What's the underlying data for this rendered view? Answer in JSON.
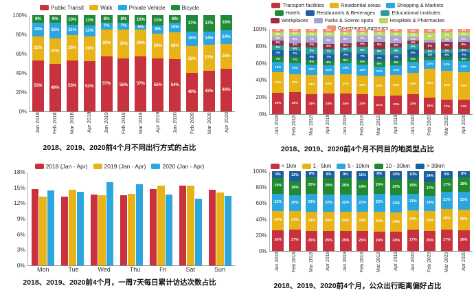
{
  "page": {
    "background": "#ffffff"
  },
  "chart_data": [
    {
      "type": "bar",
      "variant": "stacked-100",
      "title": "2018、2019、2020前4个月不同出行方式的占比",
      "xlabel": "",
      "ylabel": "",
      "ylim": [
        0,
        100
      ],
      "yticks": [
        0,
        20,
        40,
        60,
        80,
        100
      ],
      "ytick_suffix": "%",
      "grid": false,
      "legend_position": "top",
      "categories": [
        "Jan 2018",
        "Feb 2018",
        "Mar 2018",
        "Apr 2018",
        "Jan 2019",
        "Feb 2019",
        "Mar 2019",
        "Apr 2019",
        "Jan 2020",
        "Feb 2020",
        "Mar 2020",
        "Apr 2020"
      ],
      "series": [
        {
          "name": "Public Transit",
          "color": "#c8313e",
          "values": [
            53,
            49,
            53,
            52,
            57,
            55,
            57,
            55,
            54,
            40,
            42,
            44
          ]
        },
        {
          "name": "Walk",
          "color": "#e8b317",
          "values": [
            25,
            27,
            26,
            26,
            28,
            30,
            28,
            26,
            28,
            28,
            27,
            26
          ]
        },
        {
          "name": "Private Vehicle",
          "color": "#2ba6df",
          "values": [
            14,
            16,
            11,
            11,
            7,
            7,
            5,
            8,
            10,
            15,
            14,
            14
          ]
        },
        {
          "name": "Bicycle",
          "color": "#1f8a38",
          "values": [
            8,
            8,
            10,
            11,
            8,
            8,
            10,
            11,
            8,
            17,
            17,
            16
          ]
        }
      ]
    },
    {
      "type": "bar",
      "variant": "stacked-100",
      "title": "2018、2019、2020前4个月不同目的地类型占比",
      "xlabel": "",
      "ylabel": "",
      "ylim": [
        0,
        100
      ],
      "yticks": [
        0,
        20,
        40,
        60,
        80,
        100
      ],
      "ytick_suffix": "%",
      "grid": false,
      "legend_position": "top",
      "categories": [
        "Jan 2018",
        "Feb 2018",
        "Mar 2018",
        "Apr 2018",
        "Jan 2019",
        "Feb 2019",
        "Mar 2019",
        "Apr 2019",
        "Jan 2020",
        "Feb 2020",
        "Mar 2020",
        "Apr 2020"
      ],
      "series": [
        {
          "name": "Transport facilities",
          "color": "#c8313e",
          "values": [
            25,
            26,
            23,
            24,
            24,
            23,
            21,
            22,
            23,
            19,
            17,
            17
          ]
        },
        {
          "name": "Residential areas",
          "color": "#e8b317",
          "values": [
            24,
            21,
            23,
            22,
            23,
            22,
            23,
            24,
            25,
            34,
            34,
            32
          ]
        },
        {
          "name": "Shopping & Markets",
          "color": "#2ba6df",
          "values": [
            12,
            13,
            12,
            11,
            13,
            13,
            12,
            11,
            13,
            11,
            13,
            13
          ]
        },
        {
          "name": "Hotels",
          "color": "#1f8a38",
          "values": [
            7,
            7,
            6,
            6,
            6,
            6,
            6,
            6,
            6,
            3,
            3,
            4
          ]
        },
        {
          "name": "Restaurants & Beverages",
          "color": "#1f5f9e",
          "values": [
            7,
            7,
            6,
            7,
            7,
            7,
            7,
            7,
            9,
            4,
            5,
            7
          ]
        },
        {
          "name": "Educational institutes",
          "color": "#2a9d9b",
          "values": [
            6,
            5,
            8,
            7,
            5,
            8,
            8,
            8,
            6,
            5,
            4,
            4
          ]
        },
        {
          "name": "Workplaces",
          "color": "#992f3f",
          "values": [
            5,
            4,
            6,
            5,
            5,
            6,
            8,
            5,
            4,
            8,
            9,
            8
          ]
        },
        {
          "name": "Parks & Scenic spots",
          "color": "#a6a3d6",
          "values": [
            5,
            9,
            7,
            9,
            9,
            7,
            7,
            8,
            4,
            3,
            4,
            6
          ]
        },
        {
          "name": "Hospitals & Pharmacies",
          "color": "#b8d765",
          "values": [
            5,
            4,
            5,
            5,
            4,
            4,
            4,
            5,
            5,
            8,
            7,
            5
          ]
        },
        {
          "name": "Government agencies",
          "color": "#f28e76",
          "values": [
            4,
            4,
            4,
            4,
            4,
            4,
            4,
            4,
            5,
            5,
            4,
            4
          ]
        }
      ]
    },
    {
      "type": "bar",
      "variant": "grouped",
      "title": "2018、2019、2020前4个月，一周7天每日累计访达次数占比",
      "xlabel": "",
      "ylabel": "",
      "ylim": [
        0,
        18
      ],
      "yticks": [
        0,
        3,
        6,
        9,
        12,
        15,
        18
      ],
      "ytick_suffix": "%",
      "grid": false,
      "legend_position": "top",
      "categories": [
        "Mon",
        "Tue",
        "Wed",
        "Thu",
        "Fri",
        "Sat",
        "Sun"
      ],
      "series": [
        {
          "name": "2018 (Jan - Apr)",
          "color": "#c8313e",
          "values": [
            14.7,
            13.3,
            13.6,
            13.5,
            14.7,
            15.4,
            14.5
          ]
        },
        {
          "name": "2019 (Jan - Apr)",
          "color": "#e8b317",
          "values": [
            13.3,
            14.6,
            13.5,
            13.8,
            15.3,
            15.3,
            14.0
          ]
        },
        {
          "name": "2020 (Jan - Apr)",
          "color": "#2ba6df",
          "values": [
            14.4,
            14.2,
            16.0,
            15.6,
            13.6,
            12.8,
            13.4
          ]
        }
      ]
    },
    {
      "type": "bar",
      "variant": "stacked-100",
      "title": "2018、2019、2020前4个月，公众出行距离偏好占比",
      "xlabel": "",
      "ylabel": "",
      "ylim": [
        0,
        100
      ],
      "yticks": [
        0,
        20,
        40,
        60,
        80,
        100
      ],
      "ytick_suffix": "%",
      "grid": false,
      "legend_position": "top",
      "categories": [
        "Jan 2018",
        "Feb 2018",
        "Mar 2018",
        "Apr 2018",
        "Jan 2019",
        "Feb 2019",
        "Mar 2019",
        "Apr 2019",
        "Jan 2020",
        "Feb 2020",
        "Mar 2020",
        "Apr 2020"
      ],
      "series": [
        {
          "name": "< 1km",
          "color": "#c8313e",
          "values": [
            26,
            27,
            25,
            25,
            25,
            25,
            24,
            24,
            27,
            25,
            27,
            26
          ]
        },
        {
          "name": "1 - 5km",
          "color": "#e8b317",
          "values": [
            24,
            23,
            24,
            24,
            24,
            24,
            25,
            24,
            24,
            25,
            26,
            26
          ]
        },
        {
          "name": "5 - 10km",
          "color": "#2ba6df",
          "values": [
            22,
            20,
            23,
            22,
            22,
            21,
            23,
            22,
            21,
            19,
            21,
            22
          ]
        },
        {
          "name": "10 - 30km",
          "color": "#218a30",
          "values": [
            19,
            18,
            20,
            20,
            20,
            19,
            20,
            20,
            18,
            17,
            17,
            18
          ]
        },
        {
          "name": "> 30km",
          "color": "#1b5f9e",
          "values": [
            9,
            12,
            8,
            9,
            9,
            11,
            8,
            10,
            10,
            14,
            9,
            8
          ]
        }
      ]
    }
  ]
}
